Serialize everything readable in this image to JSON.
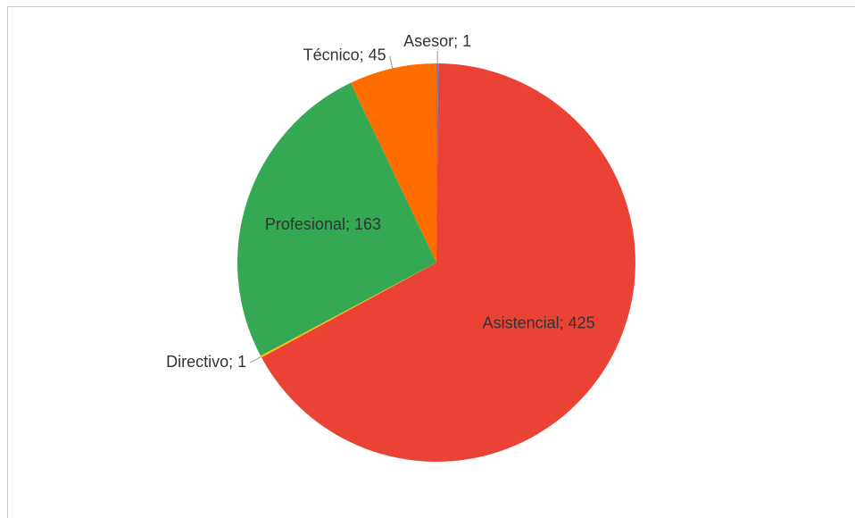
{
  "chart_data": {
    "type": "pie",
    "values": [
      1,
      425,
      1,
      163,
      45
    ],
    "value_labels": [
      "Asesor; 1",
      "Asistencial; 425",
      "Directivo; 1",
      "Profesional; 163",
      "Técnico; 45"
    ],
    "colors": [
      "#6a7fc4",
      "#ea4335",
      "#fbbc04",
      "#34a853",
      "#ff6d01"
    ]
  }
}
